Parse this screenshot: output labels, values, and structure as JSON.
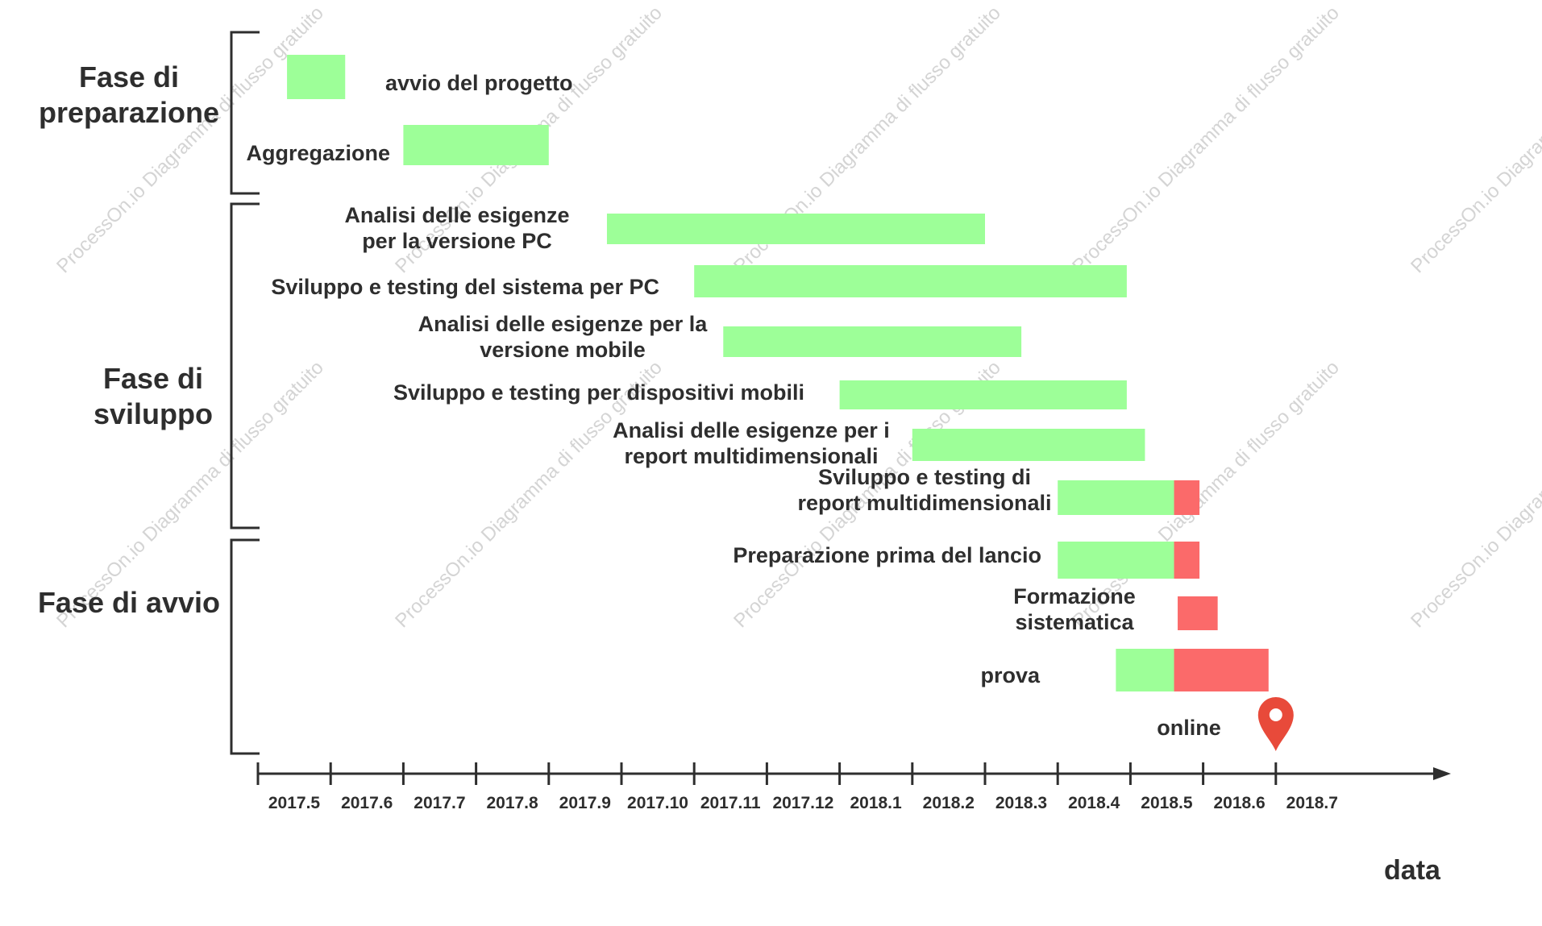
{
  "phases": [
    {
      "label_lines": [
        "Fase di",
        "preparazione"
      ]
    },
    {
      "label_lines": [
        "Fase di",
        "sviluppo"
      ]
    },
    {
      "label_lines": [
        "Fase di avvio"
      ]
    }
  ],
  "tasks": [
    {
      "label_lines": [
        "avvio del progetto"
      ],
      "segments": [
        {
          "start": 0.4,
          "end": 1.2,
          "status": "planned"
        }
      ]
    },
    {
      "label_lines": [
        "Aggregazione"
      ],
      "segments": [
        {
          "start": 2.0,
          "end": 4.0,
          "status": "planned"
        }
      ]
    },
    {
      "label_lines": [
        "Analisi delle esigenze",
        "per la versione PC"
      ],
      "segments": [
        {
          "start": 4.8,
          "end": 10.0,
          "status": "planned"
        }
      ]
    },
    {
      "label_lines": [
        "Sviluppo e testing del sistema per PC"
      ],
      "segments": [
        {
          "start": 6.0,
          "end": 11.95,
          "status": "planned"
        }
      ]
    },
    {
      "label_lines": [
        "Analisi delle esigenze per la",
        "versione mobile"
      ],
      "segments": [
        {
          "start": 6.4,
          "end": 10.5,
          "status": "planned"
        }
      ]
    },
    {
      "label_lines": [
        "Sviluppo e testing per dispositivi mobili"
      ],
      "segments": [
        {
          "start": 8.0,
          "end": 11.95,
          "status": "planned"
        }
      ]
    },
    {
      "label_lines": [
        "Analisi delle esigenze per i",
        "report multidimensionali"
      ],
      "segments": [
        {
          "start": 9.0,
          "end": 12.2,
          "status": "planned"
        }
      ]
    },
    {
      "label_lines": [
        "Sviluppo e testing di",
        "report multidimensionali"
      ],
      "segments": [
        {
          "start": 11.0,
          "end": 12.6,
          "status": "planned"
        },
        {
          "start": 12.6,
          "end": 12.95,
          "status": "extended"
        }
      ]
    },
    {
      "label_lines": [
        "Preparazione prima del lancio"
      ],
      "segments": [
        {
          "start": 11.0,
          "end": 12.6,
          "status": "planned"
        },
        {
          "start": 12.6,
          "end": 12.95,
          "status": "extended"
        }
      ]
    },
    {
      "label_lines": [
        "Formazione",
        "sistematica"
      ],
      "segments": [
        {
          "start": 12.65,
          "end": 13.2,
          "status": "extended"
        }
      ]
    },
    {
      "label_lines": [
        "prova"
      ],
      "segments": [
        {
          "start": 11.8,
          "end": 12.6,
          "status": "planned"
        },
        {
          "start": 12.6,
          "end": 13.9,
          "status": "extended"
        }
      ]
    }
  ],
  "milestone": {
    "label": "online",
    "icon": "location-pin-icon",
    "at": 14.0,
    "color": "#e84a3a"
  },
  "axis": {
    "title": "data",
    "ticks": [
      "2017.5",
      "2017.6",
      "2017.7",
      "2017.8",
      "2017.9",
      "2017.10",
      "2017.11",
      "2017.12",
      "2018.1",
      "2018.2",
      "2018.3",
      "2018.4",
      "2018.5",
      "2018.6",
      "2018.7"
    ]
  },
  "colors": {
    "planned": "#9dff98",
    "extended": "#fb6a6a",
    "ink": "#2e2e2e",
    "milestone": "#e84a3a"
  },
  "watermark": "ProcessOn.io Diagramma di flusso gratuito"
}
